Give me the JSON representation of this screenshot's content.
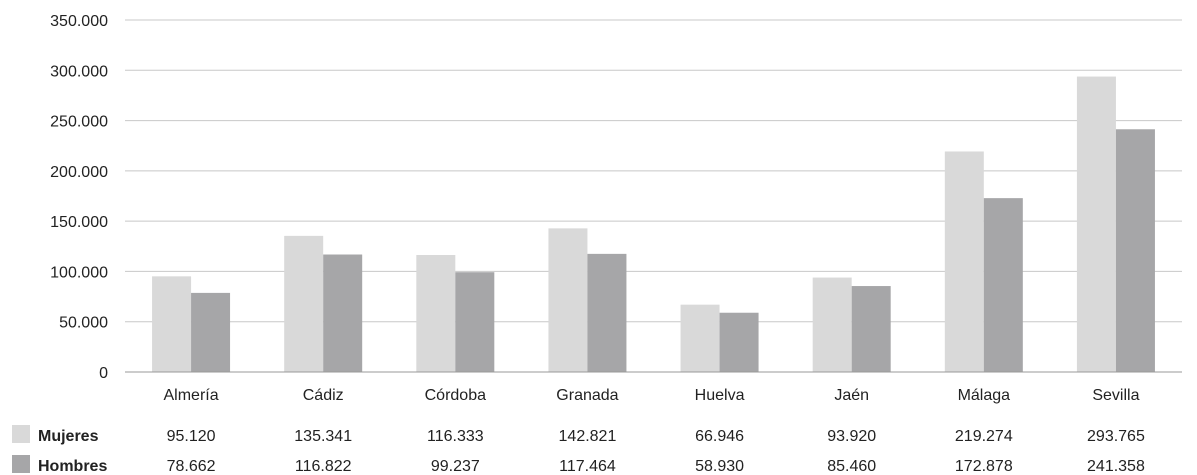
{
  "chart_data": {
    "type": "bar",
    "categories": [
      "Almería",
      "Cádiz",
      "Córdoba",
      "Granada",
      "Huelva",
      "Jaén",
      "Málaga",
      "Sevilla"
    ],
    "series": [
      {
        "name": "Mujeres",
        "color": "#d9d9d9",
        "values": [
          95120,
          135341,
          116333,
          142821,
          66946,
          93920,
          219274,
          293765
        ],
        "labels": [
          "95.120",
          "135.341",
          "116.333",
          "142.821",
          "66.946",
          "93.920",
          "219.274",
          "293.765"
        ]
      },
      {
        "name": "Hombres",
        "color": "#a6a6a8",
        "values": [
          78662,
          116822,
          99237,
          117464,
          58930,
          85460,
          172878,
          241358
        ],
        "labels": [
          "78.662",
          "116.822",
          "99.237",
          "117.464",
          "58.930",
          "85.460",
          "172.878",
          "241.358"
        ]
      }
    ],
    "ylim": [
      0,
      350000
    ],
    "yticks": [
      0,
      50000,
      100000,
      150000,
      200000,
      250000,
      300000,
      350000
    ],
    "ytick_labels": [
      "0",
      "50.000",
      "100.000",
      "150.000",
      "200.000",
      "250.000",
      "300.000",
      "350.000"
    ],
    "grid": true,
    "legend_placement": "bottom-left data table",
    "title": "",
    "xlabel": "",
    "ylabel": ""
  }
}
